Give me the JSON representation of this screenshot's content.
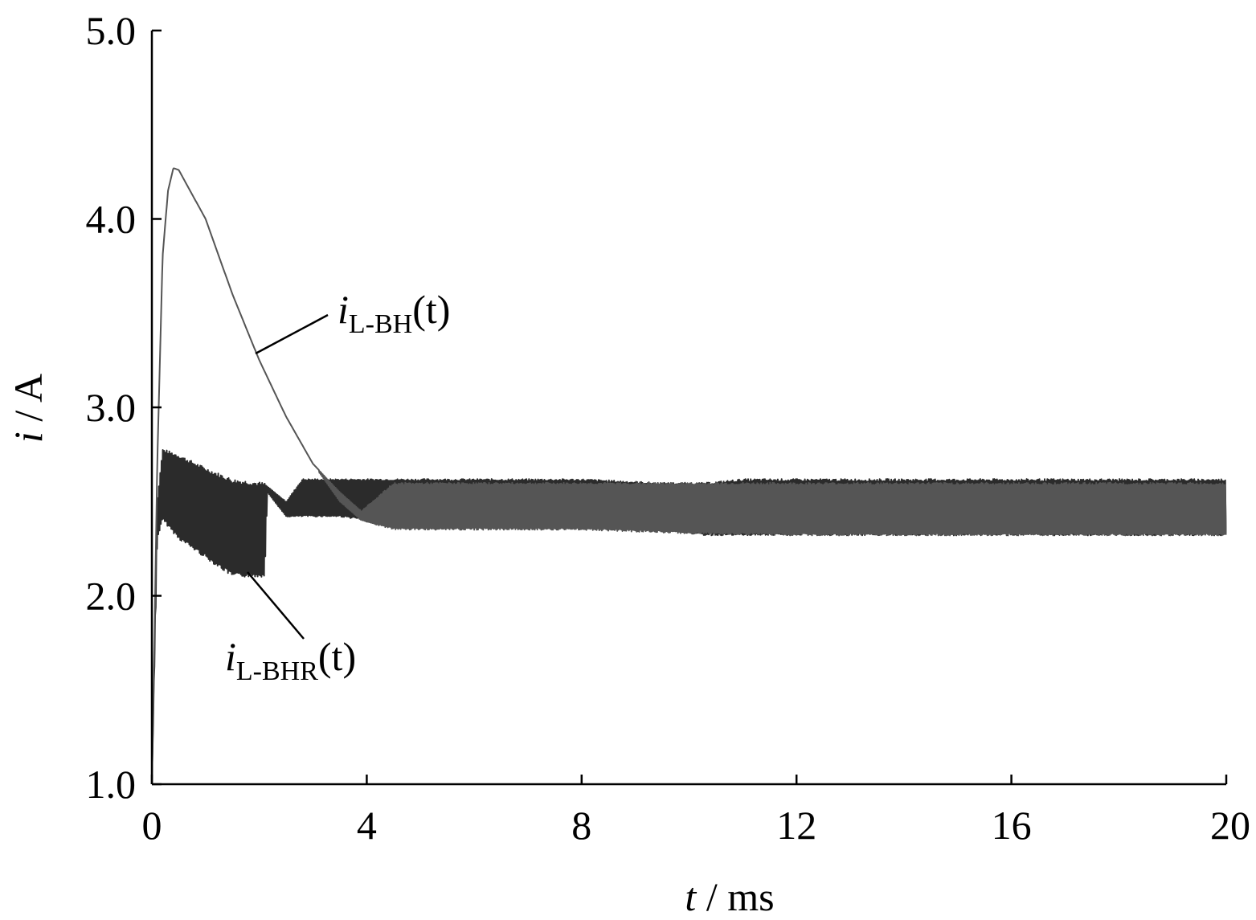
{
  "chart_data": {
    "type": "line",
    "xlabel": {
      "var": "t",
      "unit": " / ms"
    },
    "ylabel": {
      "var": "i",
      "unit": " / A"
    },
    "xlim": [
      0,
      20
    ],
    "ylim": [
      1.0,
      5.0
    ],
    "xticks": [
      "0",
      "4",
      "8",
      "12",
      "16",
      "20"
    ],
    "xtick_values": [
      0,
      4,
      8,
      12,
      16,
      20
    ],
    "yticks": [
      "1.0",
      "2.0",
      "3.0",
      "4.0",
      "5.0"
    ],
    "ytick_values": [
      1.0,
      2.0,
      3.0,
      4.0,
      5.0
    ],
    "grid": false,
    "legend": "none",
    "series": [
      {
        "name": "iL-BH(t)",
        "color": "#555555",
        "envelope": {
          "x": [
            0.0,
            0.05,
            0.1,
            0.2,
            0.3,
            0.4,
            0.5,
            1.0,
            1.5,
            2.0,
            2.5,
            3.0,
            3.5,
            3.9,
            4.5,
            6,
            8,
            10,
            12,
            14,
            16,
            18,
            20
          ],
          "upper": [
            1.0,
            1.8,
            2.7,
            3.8,
            4.15,
            4.27,
            4.26,
            4.0,
            3.6,
            3.25,
            2.95,
            2.7,
            2.55,
            2.45,
            2.6,
            2.6,
            2.6,
            2.6,
            2.6,
            2.6,
            2.6,
            2.6,
            2.6
          ],
          "lower": [
            1.0,
            1.8,
            2.7,
            3.8,
            4.15,
            4.27,
            4.26,
            4.0,
            3.6,
            3.25,
            2.95,
            2.7,
            2.5,
            2.4,
            2.35,
            2.35,
            2.35,
            2.33,
            2.32,
            2.32,
            2.32,
            2.32,
            2.32
          ]
        }
      },
      {
        "name": "iL-BHR(t)",
        "color": "#2b2b2b",
        "envelope": {
          "x": [
            0.0,
            0.1,
            0.2,
            0.5,
            1.0,
            1.5,
            2.1,
            2.15,
            2.5,
            2.8,
            3.5,
            4.0,
            6,
            8,
            9.5,
            10.3,
            11,
            14,
            18,
            20
          ],
          "upper": [
            1.0,
            2.5,
            2.78,
            2.75,
            2.68,
            2.62,
            2.6,
            2.58,
            2.5,
            2.62,
            2.62,
            2.62,
            2.62,
            2.62,
            2.6,
            2.6,
            2.62,
            2.62,
            2.62,
            2.62
          ],
          "lower": [
            1.0,
            2.3,
            2.4,
            2.3,
            2.2,
            2.1,
            2.1,
            2.55,
            2.42,
            2.42,
            2.42,
            2.4,
            2.38,
            2.36,
            2.35,
            2.32,
            2.32,
            2.32,
            2.32,
            2.32
          ]
        }
      }
    ],
    "annotations": [
      {
        "series": "iL-BH(t)",
        "main": "i",
        "sub": "L-BH",
        "suffix": "(t)"
      },
      {
        "series": "iL-BHR(t)",
        "main": "i",
        "sub": "L-BHR",
        "suffix": "(t)"
      }
    ]
  }
}
